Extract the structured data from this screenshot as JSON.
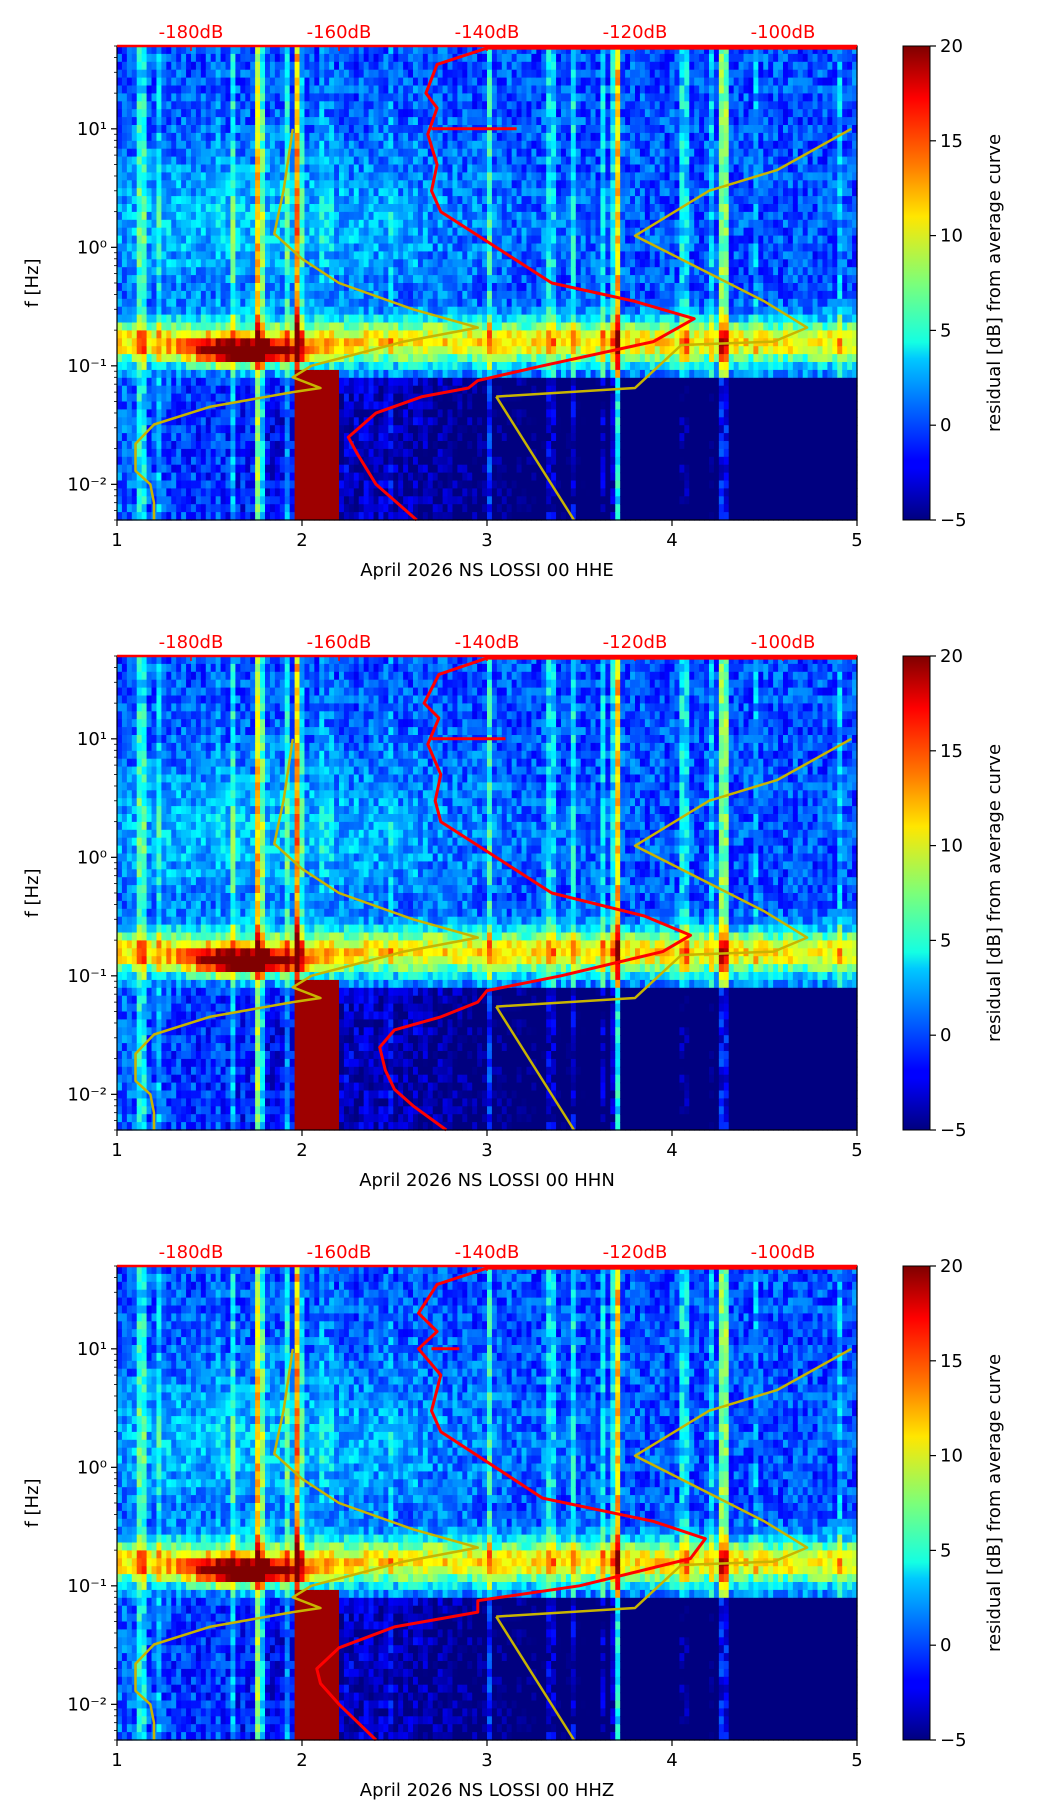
{
  "figure": {
    "kind": "spectrogram panels with noise model overlays"
  },
  "chart_data": [
    {
      "type": "heatmap",
      "title": "",
      "xlabel": "April 2026 NS LOSSI 00 HHE",
      "ylabel": "f [Hz]",
      "xlim": [
        1,
        5
      ],
      "ylim": [
        0.005,
        50
      ],
      "yscale": "log",
      "x_ticks": [
        "1",
        "2",
        "3",
        "4",
        "5"
      ],
      "y_ticks": [
        {
          "value": 0.01,
          "label": "10⁻²"
        },
        {
          "value": 0.1,
          "label": "10⁻¹"
        },
        {
          "value": 1,
          "label": "10⁰"
        },
        {
          "value": 10,
          "label": "10¹"
        }
      ],
      "top_axis": {
        "color": "#ff0000",
        "labels": [
          "-180dB",
          "-160dB",
          "-140dB",
          "-120dB",
          "-100dB"
        ],
        "x_positions": [
          1.4,
          2.2,
          3.0,
          3.8,
          4.6
        ]
      },
      "colorbar": {
        "label": "residual [dB] from average curve",
        "range": [
          -5,
          20
        ],
        "ticks": [
          -5,
          0,
          5,
          10,
          15,
          20
        ],
        "colormap": "jet"
      },
      "hot_columns": [
        1.77,
        1.98,
        3.7,
        4.28
      ],
      "hot_spot": {
        "x": 1.7,
        "f": 0.13
      },
      "dark_band": {
        "x_from": 1.97,
        "x_to": 2.2,
        "f_from": 0.005,
        "f_to": 0.09
      },
      "series": [
        {
          "name": "model-low",
          "color": "#c8b400",
          "points": [
            [
              1.2,
              0.005
            ],
            [
              1.2,
              0.007
            ],
            [
              1.18,
              0.01
            ],
            [
              1.1,
              0.013
            ],
            [
              1.1,
              0.022
            ],
            [
              1.2,
              0.032
            ],
            [
              1.5,
              0.045
            ],
            [
              1.95,
              0.06
            ],
            [
              2.1,
              0.065
            ],
            [
              1.95,
              0.08
            ],
            [
              2.05,
              0.1
            ],
            [
              2.55,
              0.16
            ],
            [
              2.95,
              0.21
            ],
            [
              2.6,
              0.3
            ],
            [
              2.2,
              0.5
            ],
            [
              2.0,
              0.8
            ],
            [
              1.85,
              1.3
            ],
            [
              1.9,
              3.0
            ],
            [
              1.95,
              10.0
            ]
          ]
        },
        {
          "name": "model-high",
          "color": "#c8b400",
          "points": [
            [
              3.05,
              0.055
            ],
            [
              3.8,
              0.065
            ],
            [
              4.05,
              0.15
            ],
            [
              4.55,
              0.16
            ],
            [
              4.73,
              0.21
            ],
            [
              4.5,
              0.35
            ],
            [
              3.8,
              1.25
            ],
            [
              4.2,
              3.0
            ],
            [
              4.57,
              4.5
            ],
            [
              4.97,
              10.0
            ]
          ]
        },
        {
          "name": "reference-pdf",
          "color": "#c8b400",
          "points": [
            [
              3.05,
              0.055
            ],
            [
              3.47,
              0.005
            ]
          ]
        },
        {
          "name": "median-psd",
          "color": "#ff0000",
          "points": [
            [
              2.62,
              0.005
            ],
            [
              2.4,
              0.01
            ],
            [
              2.3,
              0.018
            ],
            [
              2.25,
              0.025
            ],
            [
              2.4,
              0.04
            ],
            [
              2.65,
              0.055
            ],
            [
              2.9,
              0.065
            ],
            [
              2.95,
              0.075
            ],
            [
              3.3,
              0.1
            ],
            [
              3.9,
              0.16
            ],
            [
              4.12,
              0.25
            ],
            [
              3.8,
              0.35
            ],
            [
              3.35,
              0.5
            ],
            [
              2.75,
              2.0
            ],
            [
              2.7,
              3.0
            ],
            [
              2.73,
              5.0
            ],
            [
              2.68,
              9.0
            ],
            [
              2.73,
              15.0
            ],
            [
              2.67,
              20.0
            ],
            [
              2.73,
              35.0
            ],
            [
              3.0,
              48.0
            ],
            [
              5.0,
              48.0
            ]
          ]
        },
        {
          "name": "median-psd-spike",
          "color": "#ff0000",
          "points": [
            [
              2.7,
              10.0
            ],
            [
              3.16,
              10.0
            ]
          ]
        }
      ]
    },
    {
      "type": "heatmap",
      "title": "",
      "xlabel": "April 2026 NS LOSSI 00 HHN",
      "ylabel": "f [Hz]",
      "xlim": [
        1,
        5
      ],
      "ylim": [
        0.005,
        50
      ],
      "yscale": "log",
      "x_ticks": [
        "1",
        "2",
        "3",
        "4",
        "5"
      ],
      "y_ticks": [
        {
          "value": 0.01,
          "label": "10⁻²"
        },
        {
          "value": 0.1,
          "label": "10⁻¹"
        },
        {
          "value": 1,
          "label": "10⁰"
        },
        {
          "value": 10,
          "label": "10¹"
        }
      ],
      "top_axis": {
        "color": "#ff0000",
        "labels": [
          "-180dB",
          "-160dB",
          "-140dB",
          "-120dB",
          "-100dB"
        ],
        "x_positions": [
          1.4,
          2.2,
          3.0,
          3.8,
          4.6
        ]
      },
      "colorbar": {
        "label": "residual [dB] from average curve",
        "range": [
          -5,
          20
        ],
        "ticks": [
          -5,
          0,
          5,
          10,
          15,
          20
        ],
        "colormap": "jet"
      },
      "hot_columns": [
        1.77,
        1.98,
        3.7,
        4.28
      ],
      "hot_spot": {
        "x": 1.7,
        "f": 0.13
      },
      "dark_band": {
        "x_from": 1.97,
        "x_to": 2.2,
        "f_from": 0.005,
        "f_to": 0.09
      },
      "series": [
        {
          "name": "model-low",
          "color": "#c8b400",
          "points": [
            [
              1.2,
              0.005
            ],
            [
              1.2,
              0.007
            ],
            [
              1.18,
              0.01
            ],
            [
              1.1,
              0.013
            ],
            [
              1.1,
              0.022
            ],
            [
              1.2,
              0.032
            ],
            [
              1.5,
              0.045
            ],
            [
              1.95,
              0.06
            ],
            [
              2.1,
              0.065
            ],
            [
              1.95,
              0.08
            ],
            [
              2.05,
              0.1
            ],
            [
              2.55,
              0.16
            ],
            [
              2.95,
              0.21
            ],
            [
              2.6,
              0.3
            ],
            [
              2.2,
              0.5
            ],
            [
              2.0,
              0.8
            ],
            [
              1.85,
              1.3
            ],
            [
              1.9,
              3.0
            ],
            [
              1.95,
              10.0
            ]
          ]
        },
        {
          "name": "model-high",
          "color": "#c8b400",
          "points": [
            [
              3.05,
              0.055
            ],
            [
              3.8,
              0.065
            ],
            [
              4.05,
              0.15
            ],
            [
              4.55,
              0.16
            ],
            [
              4.73,
              0.21
            ],
            [
              4.5,
              0.35
            ],
            [
              3.8,
              1.25
            ],
            [
              4.2,
              3.0
            ],
            [
              4.57,
              4.5
            ],
            [
              4.97,
              10.0
            ]
          ]
        },
        {
          "name": "reference-pdf",
          "color": "#c8b400",
          "points": [
            [
              3.05,
              0.055
            ],
            [
              3.47,
              0.005
            ]
          ]
        },
        {
          "name": "median-psd",
          "color": "#ff0000",
          "points": [
            [
              2.78,
              0.005
            ],
            [
              2.6,
              0.008
            ],
            [
              2.5,
              0.011
            ],
            [
              2.45,
              0.016
            ],
            [
              2.42,
              0.025
            ],
            [
              2.5,
              0.035
            ],
            [
              2.75,
              0.045
            ],
            [
              2.95,
              0.06
            ],
            [
              3.0,
              0.075
            ],
            [
              3.4,
              0.1
            ],
            [
              3.95,
              0.16
            ],
            [
              4.1,
              0.22
            ],
            [
              3.85,
              0.32
            ],
            [
              3.35,
              0.5
            ],
            [
              2.75,
              2.0
            ],
            [
              2.72,
              3.0
            ],
            [
              2.75,
              5.0
            ],
            [
              2.68,
              9.0
            ],
            [
              2.74,
              15.0
            ],
            [
              2.66,
              20.0
            ],
            [
              2.74,
              35.0
            ],
            [
              3.0,
              48.0
            ],
            [
              5.0,
              48.0
            ]
          ]
        },
        {
          "name": "median-psd-spike",
          "color": "#ff0000",
          "points": [
            [
              2.7,
              10.0
            ],
            [
              3.1,
              10.0
            ]
          ]
        }
      ]
    },
    {
      "type": "heatmap",
      "title": "",
      "xlabel": "April 2026 NS LOSSI 00 HHZ",
      "ylabel": "f [Hz]",
      "xlim": [
        1,
        5
      ],
      "ylim": [
        0.005,
        50
      ],
      "yscale": "log",
      "x_ticks": [
        "1",
        "2",
        "3",
        "4",
        "5"
      ],
      "y_ticks": [
        {
          "value": 0.01,
          "label": "10⁻²"
        },
        {
          "value": 0.1,
          "label": "10⁻¹"
        },
        {
          "value": 1,
          "label": "10⁰"
        },
        {
          "value": 10,
          "label": "10¹"
        }
      ],
      "top_axis": {
        "color": "#ff0000",
        "labels": [
          "-180dB",
          "-160dB",
          "-140dB",
          "-120dB",
          "-100dB"
        ],
        "x_positions": [
          1.4,
          2.2,
          3.0,
          3.8,
          4.6
        ]
      },
      "colorbar": {
        "label": "residual [dB] from average curve",
        "range": [
          -5,
          20
        ],
        "ticks": [
          -5,
          0,
          5,
          10,
          15,
          20
        ],
        "colormap": "jet"
      },
      "hot_columns": [
        1.77,
        1.98,
        3.7,
        4.28
      ],
      "hot_spot": {
        "x": 1.7,
        "f": 0.13
      },
      "dark_band": {
        "x_from": 1.97,
        "x_to": 2.2,
        "f_from": 0.005,
        "f_to": 0.09
      },
      "series": [
        {
          "name": "model-low",
          "color": "#c8b400",
          "points": [
            [
              1.2,
              0.005
            ],
            [
              1.2,
              0.007
            ],
            [
              1.18,
              0.01
            ],
            [
              1.1,
              0.013
            ],
            [
              1.1,
              0.022
            ],
            [
              1.2,
              0.032
            ],
            [
              1.5,
              0.045
            ],
            [
              1.95,
              0.06
            ],
            [
              2.1,
              0.065
            ],
            [
              1.95,
              0.08
            ],
            [
              2.05,
              0.1
            ],
            [
              2.55,
              0.16
            ],
            [
              2.95,
              0.21
            ],
            [
              2.6,
              0.3
            ],
            [
              2.2,
              0.5
            ],
            [
              2.0,
              0.8
            ],
            [
              1.85,
              1.3
            ],
            [
              1.9,
              3.0
            ],
            [
              1.95,
              10.0
            ]
          ]
        },
        {
          "name": "model-high",
          "color": "#c8b400",
          "points": [
            [
              3.05,
              0.055
            ],
            [
              3.8,
              0.065
            ],
            [
              4.05,
              0.15
            ],
            [
              4.55,
              0.16
            ],
            [
              4.73,
              0.21
            ],
            [
              4.5,
              0.35
            ],
            [
              3.8,
              1.25
            ],
            [
              4.2,
              3.0
            ],
            [
              4.57,
              4.5
            ],
            [
              4.97,
              10.0
            ]
          ]
        },
        {
          "name": "reference-pdf",
          "color": "#c8b400",
          "points": [
            [
              3.05,
              0.055
            ],
            [
              3.47,
              0.005
            ]
          ]
        },
        {
          "name": "median-psd",
          "color": "#ff0000",
          "points": [
            [
              2.4,
              0.005
            ],
            [
              2.2,
              0.01
            ],
            [
              2.1,
              0.015
            ],
            [
              2.08,
              0.02
            ],
            [
              2.2,
              0.03
            ],
            [
              2.5,
              0.045
            ],
            [
              2.95,
              0.06
            ],
            [
              2.95,
              0.075
            ],
            [
              3.5,
              0.1
            ],
            [
              4.1,
              0.17
            ],
            [
              4.18,
              0.25
            ],
            [
              3.9,
              0.35
            ],
            [
              3.3,
              0.55
            ],
            [
              2.75,
              2.0
            ],
            [
              2.7,
              3.0
            ],
            [
              2.75,
              6.0
            ],
            [
              2.63,
              10.0
            ],
            [
              2.73,
              14.0
            ],
            [
              2.63,
              20.0
            ],
            [
              2.73,
              35.0
            ],
            [
              3.0,
              48.0
            ],
            [
              5.0,
              48.0
            ]
          ]
        },
        {
          "name": "median-psd-spike",
          "color": "#ff0000",
          "points": [
            [
              2.7,
              10.0
            ],
            [
              2.85,
              10.0
            ]
          ]
        }
      ]
    }
  ]
}
